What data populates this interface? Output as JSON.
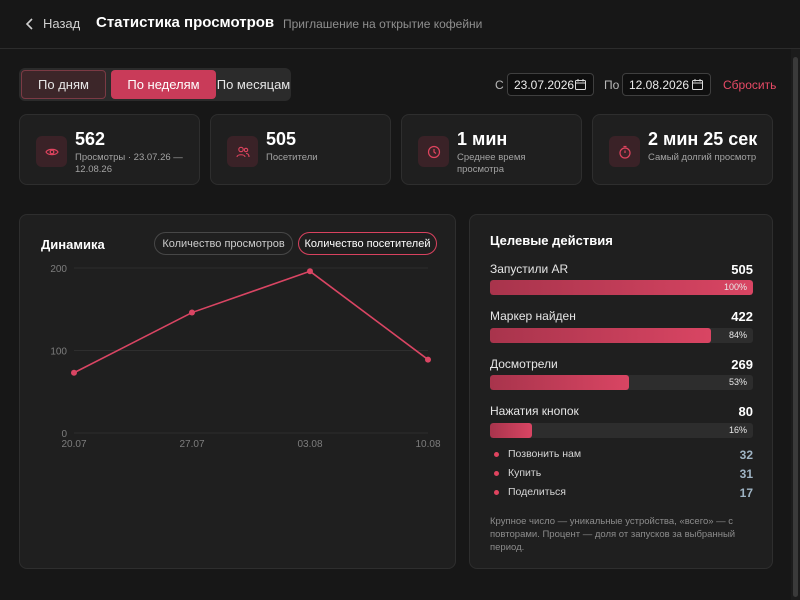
{
  "header": {
    "back_label": "Назад",
    "title": "Статистика просмотров",
    "subtitle": "Приглашение на открытие кофейни"
  },
  "period_tabs": [
    {
      "label": "По дням",
      "state": "outlined"
    },
    {
      "label": "По неделям",
      "state": "active"
    },
    {
      "label": "По месяцам",
      "state": "default"
    }
  ],
  "date_range": {
    "from_label": "С",
    "from_value": "23.07.2026",
    "to_label": "По",
    "to_value": "12.08.2026",
    "reset_label": "Сбросить"
  },
  "stats": [
    {
      "value": "562",
      "label": "Просмотры · 23.07.26 — 12.08.26",
      "icon": "eye-icon"
    },
    {
      "value": "505",
      "label": "Посетители",
      "icon": "users-icon"
    },
    {
      "value": "1 мин",
      "label": "Среднее время просмотра",
      "icon": "clock-icon"
    },
    {
      "value": "2 мин 25 сек",
      "label": "Самый долгий просмотр",
      "icon": "stopwatch-icon"
    }
  ],
  "dynamics": {
    "title": "Динамика",
    "toggle_views": "Количество просмотров",
    "toggle_visitors": "Количество посетителей",
    "active_toggle": "visitors"
  },
  "chart_data": {
    "type": "line",
    "categories": [
      "20.07",
      "27.07",
      "03.08",
      "10.08"
    ],
    "series": [
      {
        "values": [
          73,
          146,
          196,
          89
        ],
        "color": "#d94563"
      }
    ],
    "yticks": [
      0,
      100,
      200
    ],
    "ylim": [
      0,
      200
    ],
    "grid": true
  },
  "goals": {
    "title": "Целевые действия",
    "items": [
      {
        "name": "Запустили AR",
        "value": "505",
        "percent": 100,
        "percent_label": "100%"
      },
      {
        "name": "Маркер найден",
        "value": "422",
        "percent": 84,
        "percent_label": "84%"
      },
      {
        "name": "Досмотрели",
        "value": "269",
        "percent": 53,
        "percent_label": "53%"
      },
      {
        "name": "Нажатия кнопок",
        "value": "80",
        "percent": 16,
        "percent_label": "16%"
      }
    ],
    "buttons": [
      {
        "name": "Позвонить нам",
        "value": "32"
      },
      {
        "name": "Купить",
        "value": "31"
      },
      {
        "name": "Поделиться",
        "value": "17"
      }
    ],
    "note": "Крупное число — уникальные устройства, «всего» — с повторами. Процент — доля от запусков за выбранный период."
  },
  "colors": {
    "accent": "#d94563",
    "background": "#171717",
    "card": "#1f1f1f"
  }
}
